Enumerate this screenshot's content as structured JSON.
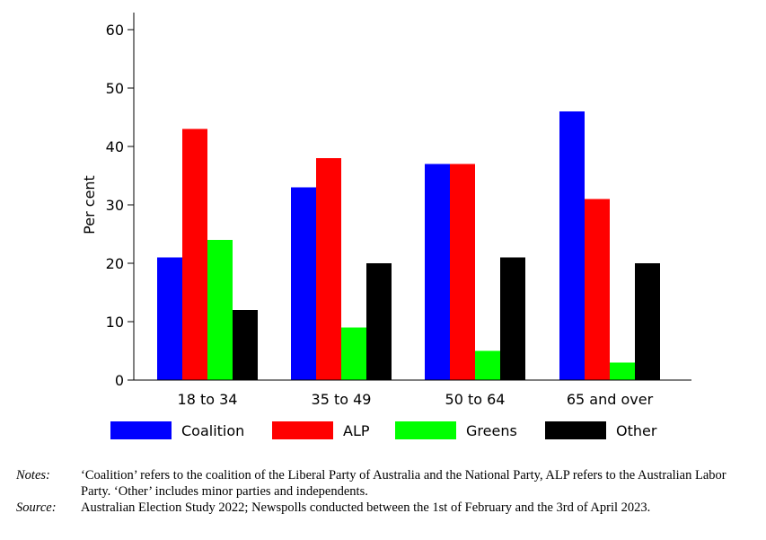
{
  "chart_data": {
    "type": "bar",
    "categories": [
      "18 to 34",
      "35 to 49",
      "50 to 64",
      "65 and over"
    ],
    "series": [
      {
        "name": "Coalition",
        "values": [
          21,
          33,
          37,
          46
        ],
        "color": "#0000ff"
      },
      {
        "name": "ALP",
        "values": [
          43,
          38,
          37,
          31
        ],
        "color": "#ff0000"
      },
      {
        "name": "Greens",
        "values": [
          24,
          9,
          5,
          3
        ],
        "color": "#00ff00"
      },
      {
        "name": "Other",
        "values": [
          12,
          20,
          21,
          20
        ],
        "color": "#000000"
      }
    ],
    "ylabel": "Per cent",
    "ylim": [
      0,
      60
    ],
    "yticks": [
      0,
      10,
      20,
      30,
      40,
      50,
      60
    ],
    "grid": false,
    "legend_position": "bottom"
  },
  "notes": {
    "label": "Notes:",
    "text": "‘Coalition’ refers to the coalition of the Liberal Party of Australia and the National Party, ALP refers to the Australian Labor Party. ‘Other’ includes minor parties and independents."
  },
  "source": {
    "label": "Source:",
    "text": "Australian Election Study 2022; Newspolls conducted between the 1st of February and the 3rd of April 2023."
  }
}
